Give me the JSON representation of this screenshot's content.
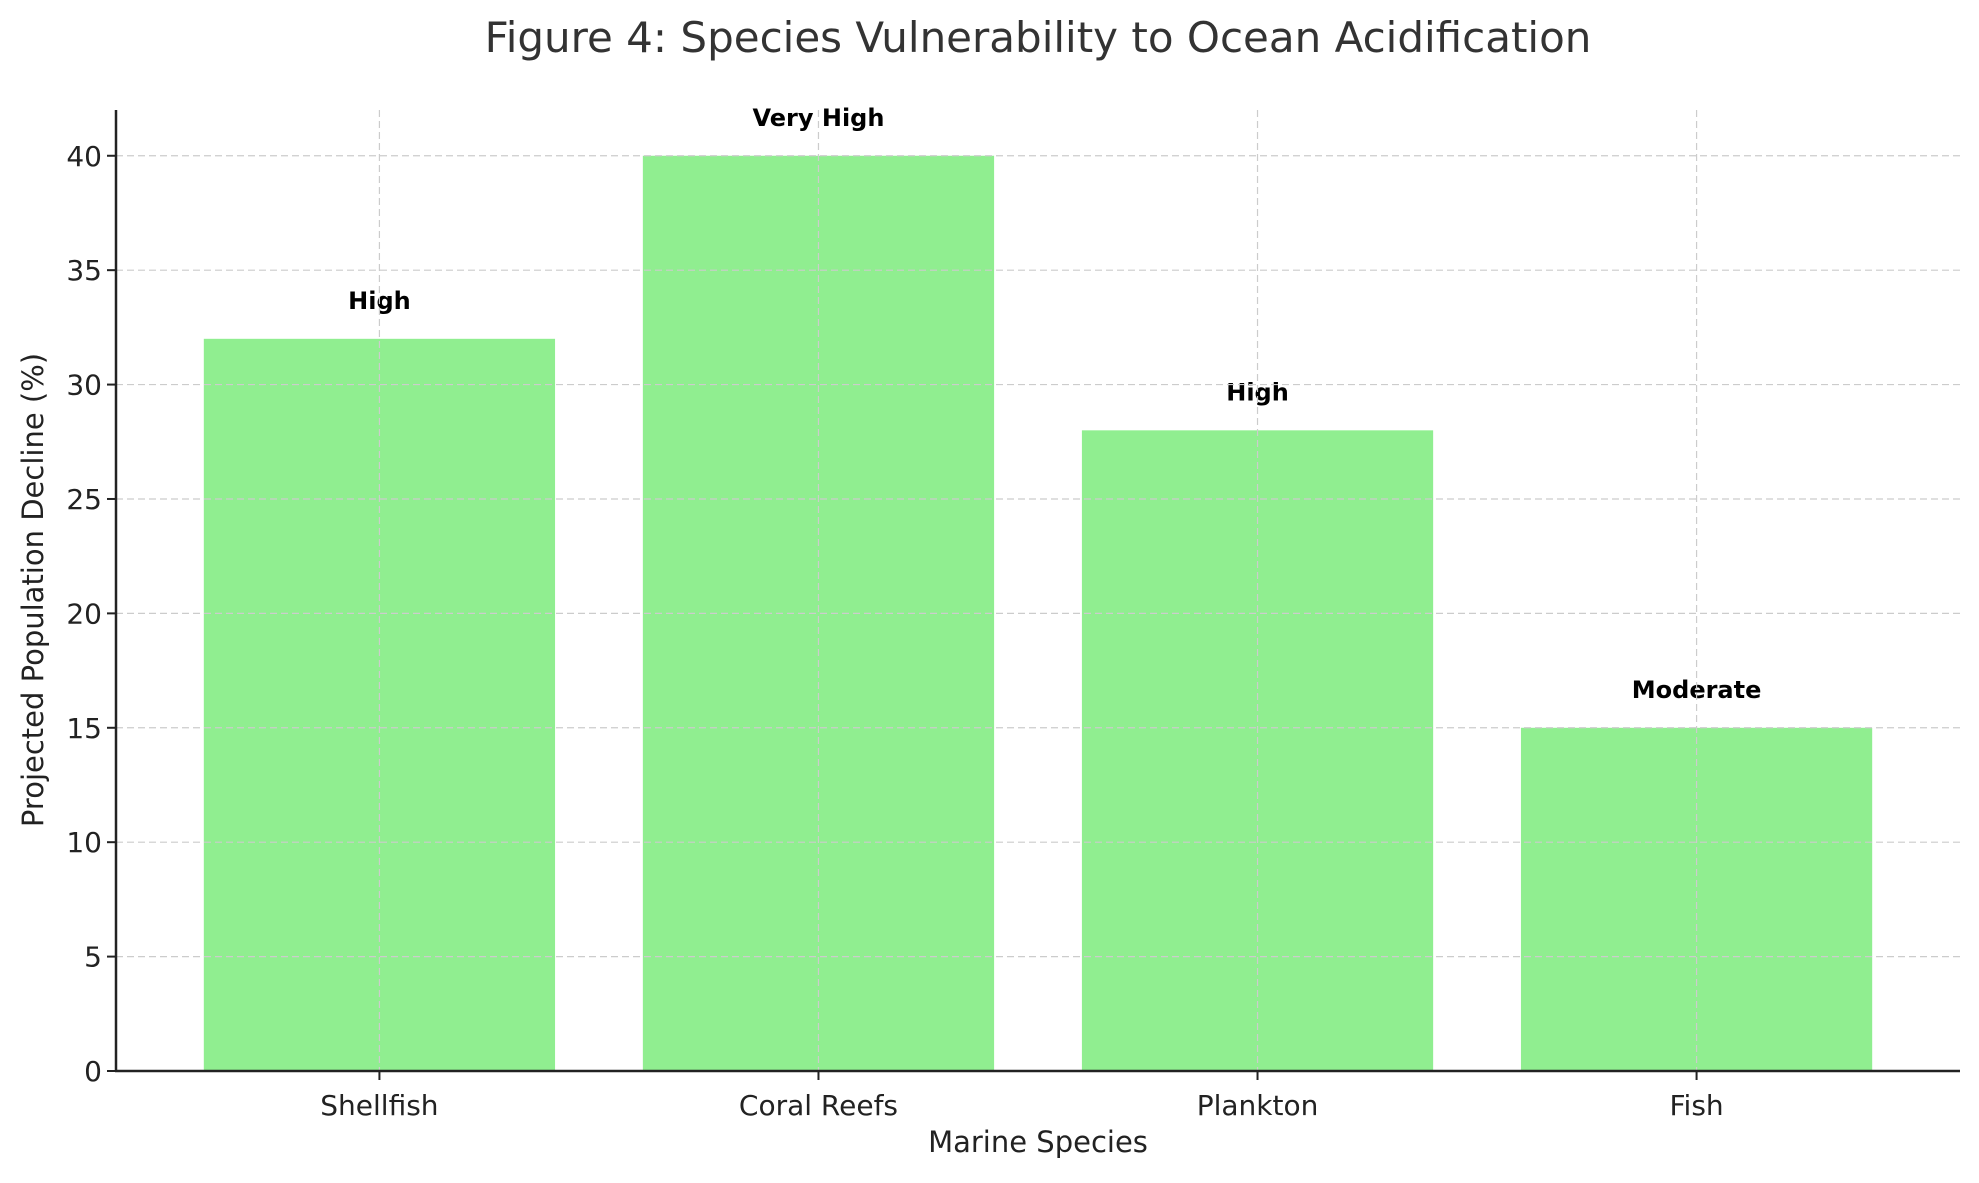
{
  "chart_data": {
    "type": "bar",
    "title": "Figure 4: Species Vulnerability to Ocean Acidification",
    "xlabel": "Marine Species",
    "ylabel": "Projected Population Decline (%)",
    "categories": [
      "Shellfish",
      "Coral Reefs",
      "Plankton",
      "Fish"
    ],
    "values": [
      32,
      40,
      28,
      15
    ],
    "annotations": [
      "High",
      "Very High",
      "High",
      "Moderate"
    ],
    "ylim": [
      0,
      42
    ],
    "yticks": [
      0,
      5,
      10,
      15,
      20,
      25,
      30,
      35,
      40
    ],
    "grid": true,
    "bar_color": "#90ee90",
    "legend": "none"
  }
}
